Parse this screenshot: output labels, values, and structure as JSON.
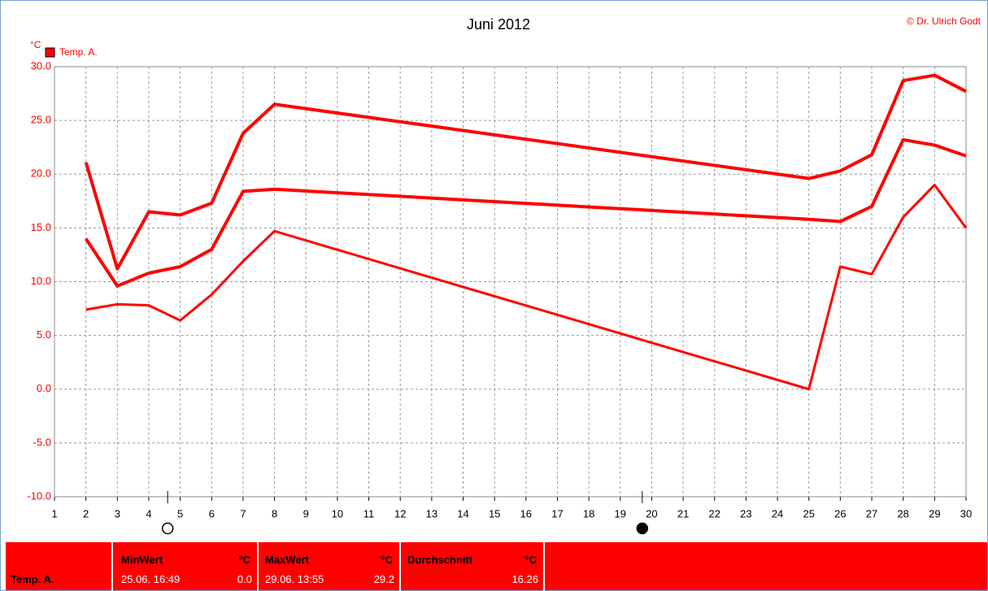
{
  "chart_data": {
    "type": "line",
    "title": "Juni 2012",
    "copyright": "© Dr. Ulrich Godt",
    "y_unit": "°C",
    "legend": "Temp. A.",
    "x": [
      2,
      3,
      4,
      5,
      6,
      7,
      8,
      25,
      26,
      27,
      28,
      29,
      30
    ],
    "series": [
      {
        "color": "#ff0000",
        "values": [
          21.1,
          11.2,
          16.5,
          16.2,
          17.3,
          23.8,
          26.5,
          19.6,
          20.3,
          21.8,
          28.7,
          29.2,
          27.7
        ]
      },
      {
        "color": "#ff0000",
        "values": [
          14.0,
          9.6,
          10.8,
          11.4,
          13.0,
          18.4,
          18.6,
          15.8,
          15.6,
          17.0,
          23.2,
          22.7,
          21.7
        ]
      },
      {
        "color": "#ff0000",
        "values": [
          7.4,
          7.9,
          7.8,
          6.4,
          8.8,
          11.9,
          14.7,
          0.0,
          11.4,
          10.7,
          16.0,
          19.0,
          15.0
        ]
      }
    ],
    "xlim": [
      1,
      30
    ],
    "xticks": [
      1,
      2,
      3,
      4,
      5,
      6,
      7,
      8,
      9,
      10,
      11,
      12,
      13,
      14,
      15,
      16,
      17,
      18,
      19,
      20,
      21,
      22,
      23,
      24,
      25,
      26,
      27,
      28,
      29,
      30
    ],
    "ylim": [
      -10,
      30
    ],
    "yticks": [
      {
        "value": -10,
        "label": "-10.0"
      },
      {
        "value": -5,
        "label": "-5.0"
      },
      {
        "value": 0,
        "label": "0.0"
      },
      {
        "value": 5,
        "label": "5.0"
      },
      {
        "value": 10,
        "label": "10.0"
      },
      {
        "value": 15,
        "label": "15.0"
      },
      {
        "value": 20,
        "label": "20.0"
      },
      {
        "value": 25,
        "label": "25.0"
      },
      {
        "value": 30,
        "label": "30.0"
      }
    ],
    "grid": true,
    "markers": [
      {
        "x": 4.6,
        "filled": false
      },
      {
        "x": 19.7,
        "filled": true
      }
    ]
  },
  "stats": {
    "row_label": "Temp. A.",
    "columns": [
      {
        "header": "MinWert",
        "unit": "°C",
        "date": "25.06.  16:49",
        "value": "0.0"
      },
      {
        "header": "MaxWert",
        "unit": "°C",
        "date": "29.06.  13:55",
        "value": "29.2"
      },
      {
        "header": "Durchschnitt",
        "unit": "°C",
        "value": "16.26"
      }
    ]
  }
}
